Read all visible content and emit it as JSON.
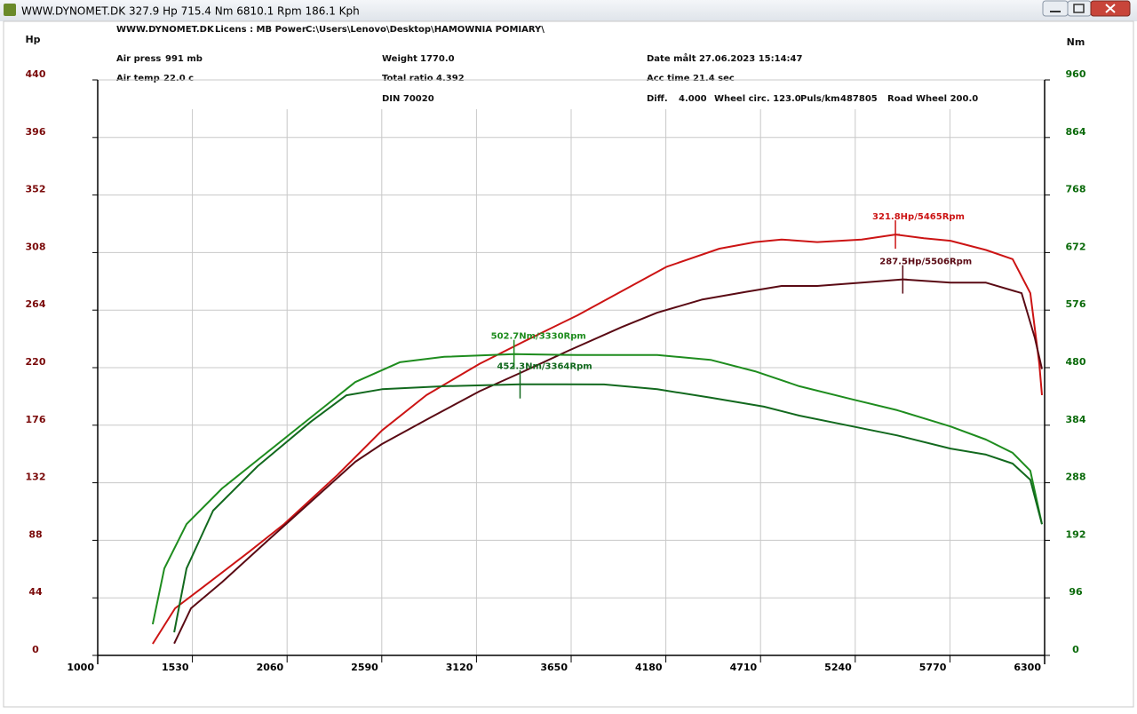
{
  "window_title": "WWW.DYNOMET.DK  327.9 Hp  715.4 Nm 6810.1 Rpm  186.1 Kph",
  "info": [
    "WWW.DYNOMET.DK",
    "Licens :  MB Power",
    "C:\\Users\\Lenovo\\Desktop\\HAMOWNIA POMIARY\\",
    "Air press",
    "991 mb",
    "Air temp",
    "22.0 c",
    "Weight",
    "1770.0",
    "Total ratio 4.392",
    "DIN 70020",
    "Date målt 27.06.2023 15:14:47",
    "Acc time",
    "21.4 sec",
    "Diff.",
    "4.000",
    "Wheel circ. 123.0",
    "Puls/km",
    "487805",
    "Road Wheel 200.0"
  ],
  "chart_data": {
    "type": "line",
    "y_label": "Hp",
    "y2_label": "Nm",
    "xlim": [
      1000,
      6300
    ],
    "xticks": [
      1000,
      1530,
      2060,
      2590,
      3120,
      3650,
      4180,
      4710,
      5240,
      5770,
      6300
    ],
    "ylim": [
      0,
      440
    ],
    "yticks": [
      0,
      44,
      88,
      132,
      176,
      220,
      264,
      308,
      352,
      396,
      440
    ],
    "y2lim": [
      0,
      960
    ],
    "y2ticks": [
      0,
      96,
      192,
      288,
      384,
      480,
      576,
      672,
      768,
      864,
      960
    ],
    "grid": true,
    "series": [
      {
        "color": "#cc1414",
        "axis": "y",
        "x": [
          1308,
          1433,
          1597,
          1845,
          2044,
          2342,
          2591,
          2840,
          3138,
          3386,
          3685,
          4182,
          4480,
          4679,
          4828,
          5027,
          5276,
          5465,
          5624,
          5773,
          5972,
          6121,
          6220,
          6270,
          6285
        ],
        "values": [
          8.8,
          36,
          53,
          79,
          100.5,
          138,
          172,
          199,
          223,
          240,
          260,
          297,
          311,
          316,
          318,
          316,
          318,
          321.8,
          319,
          317,
          310,
          303,
          277,
          223,
          199
        ]
      },
      {
        "color": "#5a0a14",
        "axis": "y",
        "x": [
          1428,
          1522,
          1696,
          1945,
          2193,
          2442,
          2591,
          2864,
          3138,
          3366,
          3635,
          3933,
          4132,
          4381,
          4629,
          4828,
          5027,
          5276,
          5506,
          5773,
          5972,
          6171,
          6245,
          6285
        ],
        "values": [
          9,
          36,
          56,
          87,
          117.5,
          148,
          161.6,
          182,
          202,
          216,
          233,
          251,
          262,
          272,
          278,
          282.5,
          282.5,
          285,
          287.5,
          285,
          285,
          277,
          243,
          219
        ]
      },
      {
        "color": "#1e8c1e",
        "axis": "y2",
        "x": [
          1308,
          1373,
          1497,
          1696,
          1945,
          2193,
          2442,
          2691,
          2939,
          3330,
          3685,
          4132,
          4430,
          4679,
          4927,
          5226,
          5475,
          5773,
          5972,
          6121,
          6220,
          6285
        ],
        "values": [
          52,
          145,
          219,
          278.5,
          338,
          397,
          456,
          489,
          498,
          502.7,
          501,
          501,
          493,
          474,
          449,
          427,
          409,
          382,
          360,
          338,
          308,
          219
        ]
      },
      {
        "color": "#12691e",
        "axis": "y2",
        "x": [
          1428,
          1497,
          1646,
          1895,
          2193,
          2392,
          2591,
          2939,
          3364,
          3834,
          4132,
          4430,
          4729,
          4927,
          5226,
          5475,
          5773,
          5972,
          6121,
          6220,
          6285
        ],
        "values": [
          38.5,
          145,
          241.5,
          315.5,
          390,
          434,
          444,
          449,
          452.3,
          452,
          444,
          430,
          415,
          400,
          382,
          367,
          345,
          335,
          320,
          293,
          219
        ]
      }
    ],
    "annotations": [
      {
        "text": "321.8Hp/5465Rpm",
        "x": 5465,
        "y": 321.8,
        "axis": "y",
        "color": "#cc1414"
      },
      {
        "text": "287.5Hp/5506Rpm",
        "x": 5506,
        "y": 287.5,
        "axis": "y",
        "color": "#5a0a14"
      },
      {
        "text": "502.7Nm/3330Rpm",
        "x": 3330,
        "y": 502.7,
        "axis": "y2",
        "color": "#1e8c1e"
      },
      {
        "text": "452.3Nm/3364Rpm",
        "x": 3364,
        "y": 452.3,
        "axis": "y2",
        "color": "#12691e"
      }
    ]
  }
}
